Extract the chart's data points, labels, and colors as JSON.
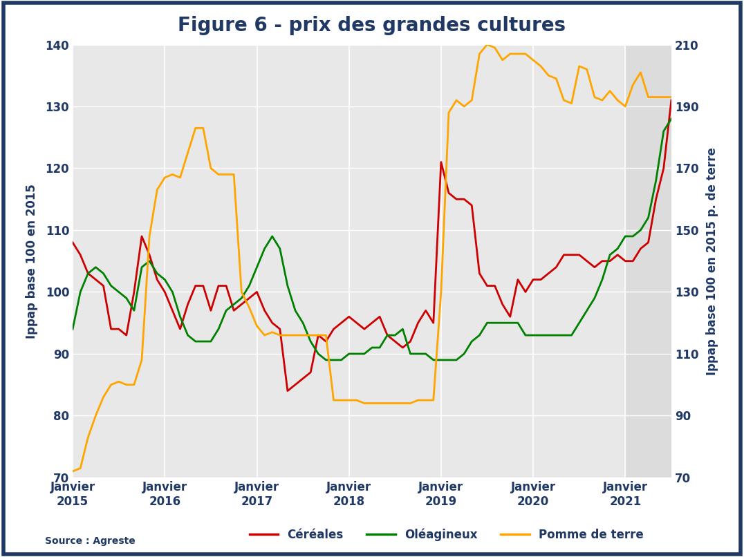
{
  "title": "Figure 6 - prix des grandes cultures",
  "ylabel_left": "Ippap base 100 en 2015",
  "ylabel_right": "Ippap base 100 en 2015 p. de terre",
  "source": "Source : Agreste",
  "ylim_left": [
    70,
    140
  ],
  "ylim_right": [
    70,
    210
  ],
  "title_color": "#1F3864",
  "axis_color": "#1F3864",
  "border_color": "#1F3864",
  "bg_color": "#FFFFFF",
  "plot_bg_color": "#DCDCDC",
  "legend_items": [
    "Céréales",
    "Oléagineux",
    "Pomme de terre"
  ],
  "legend_colors": [
    "#CC0000",
    "#008000",
    "#FFA500"
  ],
  "x_tick_labels": [
    "Janvier\n2015",
    "Janvier\n2016",
    "Janvier\n2017",
    "Janvier\n2018",
    "Janvier\n2019",
    "Janvier\n2020",
    "Janvier\n2021"
  ],
  "cereales": [
    108,
    106,
    103,
    102,
    101,
    94,
    94,
    93,
    100,
    109,
    106,
    102,
    100,
    97,
    94,
    98,
    101,
    101,
    97,
    101,
    101,
    97,
    98,
    99,
    100,
    97,
    95,
    94,
    84,
    85,
    86,
    87,
    93,
    92,
    94,
    95,
    96,
    95,
    94,
    95,
    96,
    93,
    92,
    91,
    92,
    95,
    97,
    95,
    121,
    116,
    115,
    115,
    114,
    103,
    101,
    101,
    98,
    96,
    102,
    100,
    102,
    102,
    103,
    104,
    106,
    106,
    106,
    105,
    104,
    105,
    105,
    106,
    105,
    105,
    107,
    108,
    115,
    120,
    131
  ],
  "oleagineux": [
    94,
    100,
    103,
    104,
    103,
    101,
    100,
    99,
    97,
    104,
    105,
    103,
    102,
    100,
    96,
    93,
    92,
    92,
    92,
    94,
    97,
    98,
    99,
    101,
    104,
    107,
    109,
    107,
    101,
    97,
    95,
    92,
    90,
    89,
    89,
    89,
    90,
    90,
    90,
    91,
    91,
    93,
    93,
    94,
    90,
    90,
    90,
    89,
    89,
    89,
    89,
    90,
    92,
    93,
    95,
    95,
    95,
    95,
    95,
    93,
    93,
    93,
    93,
    93,
    93,
    93,
    95,
    97,
    99,
    102,
    106,
    107,
    109,
    109,
    110,
    112,
    118,
    126,
    128
  ],
  "pomme_de_terre": [
    72,
    73,
    83,
    90,
    96,
    100,
    101,
    100,
    100,
    108,
    148,
    163,
    167,
    168,
    167,
    175,
    183,
    183,
    170,
    168,
    168,
    168,
    130,
    125,
    119,
    116,
    117,
    116,
    116,
    116,
    116,
    116,
    116,
    116,
    95,
    95,
    95,
    95,
    94,
    94,
    94,
    94,
    94,
    94,
    94,
    95,
    95,
    95,
    130,
    188,
    192,
    190,
    192,
    207,
    210,
    209,
    205,
    207,
    207,
    207,
    205,
    203,
    200,
    199,
    192,
    191,
    203,
    202,
    193,
    192,
    195,
    192,
    190,
    197,
    201,
    193,
    193,
    193,
    193
  ]
}
